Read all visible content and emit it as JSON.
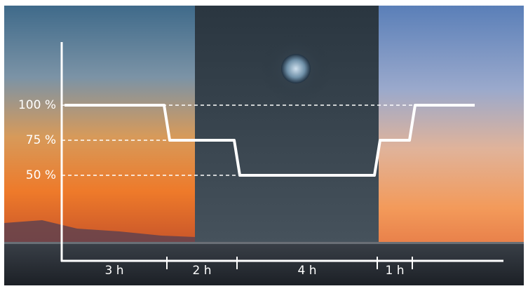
{
  "chart_data": {
    "type": "step-line",
    "x": [
      0,
      3,
      5,
      9,
      10,
      11.7
    ],
    "values": [
      100,
      75,
      50,
      75,
      100,
      100
    ],
    "color": "#ffffff",
    "ylim": [
      0,
      100
    ],
    "yticks": [
      {
        "value": 100,
        "label": "100 %"
      },
      {
        "value": 75,
        "label": "75 %"
      },
      {
        "value": 50,
        "label": "50 %"
      }
    ],
    "xlim": [
      0,
      12.6
    ],
    "xticks": [
      0,
      3,
      5,
      9,
      10
    ],
    "segment_labels": [
      "3 h",
      "2 h",
      "4 h",
      "1 h"
    ]
  }
}
